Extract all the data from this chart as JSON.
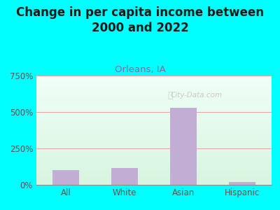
{
  "title": "Change in per capita income between\n2000 and 2022",
  "subtitle": "Orleans, IA",
  "categories": [
    "All",
    "White",
    "Asian",
    "Hispanic"
  ],
  "values": [
    100,
    115,
    530,
    18
  ],
  "bar_color": "#c2add4",
  "background_outer": "#00ffff",
  "title_fontsize": 12,
  "title_color": "#1a1a1a",
  "subtitle_fontsize": 9.5,
  "subtitle_color": "#7b6fa0",
  "tick_label_color": "#555555",
  "tick_fontsize": 8.5,
  "ylim": [
    0,
    750
  ],
  "yticks": [
    0,
    250,
    500,
    750
  ],
  "ytick_labels": [
    "0%",
    "250%",
    "500%",
    "750%"
  ],
  "grid_color": "#f0a0a0",
  "watermark": "City-Data.com",
  "plot_bg_top": "#f0fff8",
  "plot_bg_bottom": "#d8f5e0"
}
